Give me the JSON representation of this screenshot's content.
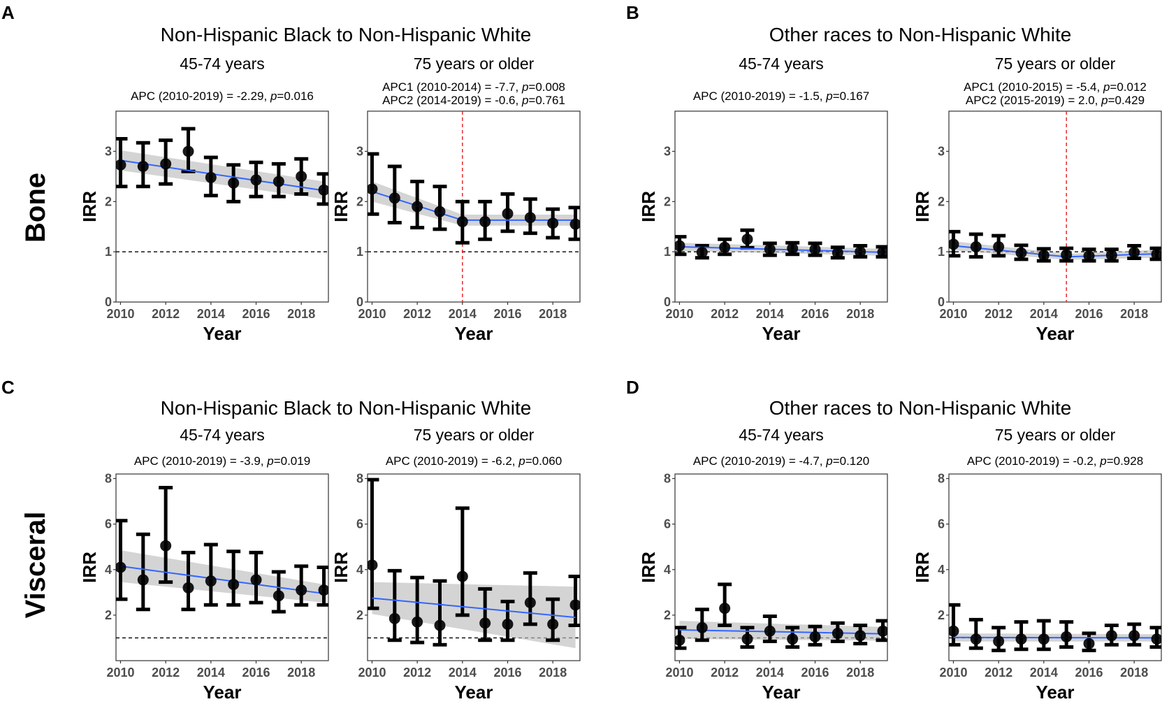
{
  "panels": [
    {
      "letter": "A",
      "title": "Non-Hispanic Black to Non-Hispanic White"
    },
    {
      "letter": "B",
      "title": "Other races to Non-Hispanic White"
    },
    {
      "letter": "C",
      "title": "Non-Hispanic Black to Non-Hispanic White"
    },
    {
      "letter": "D",
      "title": "Other races to Non-Hispanic White"
    }
  ],
  "rows": [
    {
      "label": "Bone"
    },
    {
      "label": "Visceral"
    }
  ],
  "colors": {
    "points": "#000000",
    "trend_line": "#3366ff",
    "confidence_band": "#bdbdbd",
    "joinpoint_line": "#e41a1c",
    "reference_line": "#000000"
  },
  "chart_data": [
    {
      "id": "A-45-74",
      "type": "scatter",
      "panel": "A",
      "row": "Bone",
      "title": "45-74 years",
      "annotation": [
        {
          "pre": "APC (2010-2019)  =  -2.29, ",
          "p": "p",
          "post": "=0.016"
        }
      ],
      "xlabel": "Year",
      "ylabel": "IRR",
      "xlim": [
        2009.8,
        2019.2
      ],
      "ylim": [
        0,
        3.8
      ],
      "xticks": [
        2010,
        2012,
        2014,
        2016,
        2018
      ],
      "yticks": [
        0,
        1,
        2,
        3
      ],
      "reference_y": 1,
      "joinpoint": null,
      "x": [
        2010,
        2011,
        2012,
        2013,
        2014,
        2015,
        2016,
        2017,
        2018,
        2019
      ],
      "values": [
        2.73,
        2.7,
        2.75,
        3.0,
        2.48,
        2.37,
        2.43,
        2.4,
        2.5,
        2.23
      ],
      "ci_lower": [
        2.3,
        2.3,
        2.35,
        2.6,
        2.12,
        2.0,
        2.1,
        2.1,
        2.15,
        1.95
      ],
      "ci_upper": [
        3.25,
        3.17,
        3.22,
        3.45,
        2.88,
        2.73,
        2.78,
        2.75,
        2.85,
        2.55
      ],
      "fit_x": [
        2010,
        2019
      ],
      "fit_y": [
        2.82,
        2.22
      ],
      "band_lower": [
        2.62,
        2.05
      ],
      "band_upper": [
        3.02,
        2.4
      ]
    },
    {
      "id": "A-75",
      "type": "scatter",
      "panel": "A",
      "row": "Bone",
      "title": "75 years or older",
      "annotation": [
        {
          "pre": "APC1 (2010-2014)  =  -7.7, ",
          "p": "p",
          "post": "=0.008"
        },
        {
          "pre": "APC2 (2014-2019)  =  -0.6, ",
          "p": "p",
          "post": "=0.761"
        }
      ],
      "xlabel": "Year",
      "ylabel": "IRR",
      "xlim": [
        2009.8,
        2019.2
      ],
      "ylim": [
        0,
        3.8
      ],
      "xticks": [
        2010,
        2012,
        2014,
        2016,
        2018
      ],
      "yticks": [
        0,
        1,
        2,
        3
      ],
      "reference_y": 1,
      "joinpoint": 2014,
      "x": [
        2010,
        2011,
        2012,
        2013,
        2014,
        2015,
        2016,
        2017,
        2018,
        2019
      ],
      "values": [
        2.25,
        2.07,
        1.9,
        1.8,
        1.6,
        1.6,
        1.76,
        1.68,
        1.57,
        1.55
      ],
      "ci_lower": [
        1.75,
        1.58,
        1.48,
        1.45,
        1.18,
        1.25,
        1.41,
        1.37,
        1.28,
        1.25
      ],
      "ci_upper": [
        2.95,
        2.7,
        2.4,
        2.3,
        2.0,
        2.0,
        2.15,
        2.05,
        1.85,
        1.88
      ],
      "fit_x": [
        2010,
        2014,
        2019
      ],
      "fit_y": [
        2.2,
        1.63,
        1.63
      ],
      "band_lower": [
        2.0,
        1.52,
        1.52
      ],
      "band_upper": [
        2.4,
        1.74,
        1.74
      ]
    },
    {
      "id": "B-45-74",
      "type": "scatter",
      "panel": "B",
      "row": "Bone",
      "title": "45-74 years",
      "annotation": [
        {
          "pre": "APC (2010-2019)  =  -1.5, ",
          "p": "p",
          "post": "=0.167"
        }
      ],
      "xlabel": "Year",
      "ylabel": "IRR",
      "xlim": [
        2009.8,
        2019.2
      ],
      "ylim": [
        0,
        3.8
      ],
      "xticks": [
        2010,
        2012,
        2014,
        2016,
        2018
      ],
      "yticks": [
        0,
        1,
        2,
        3
      ],
      "reference_y": 1,
      "joinpoint": null,
      "x": [
        2010,
        2011,
        2012,
        2013,
        2014,
        2015,
        2016,
        2017,
        2018,
        2019
      ],
      "values": [
        1.12,
        0.99,
        1.09,
        1.25,
        1.05,
        1.07,
        1.05,
        0.98,
        1.0,
        0.99
      ],
      "ci_lower": [
        0.95,
        0.88,
        0.95,
        1.08,
        0.93,
        0.95,
        0.93,
        0.88,
        0.9,
        0.9
      ],
      "ci_upper": [
        1.3,
        1.12,
        1.25,
        1.43,
        1.17,
        1.18,
        1.17,
        1.09,
        1.12,
        1.1
      ],
      "fit_x": [
        2010,
        2019
      ],
      "fit_y": [
        1.1,
        0.99
      ],
      "band_lower": [
        1.02,
        0.92
      ],
      "band_upper": [
        1.18,
        1.06
      ]
    },
    {
      "id": "B-75",
      "type": "scatter",
      "panel": "B",
      "row": "Bone",
      "title": "75 years or older",
      "annotation": [
        {
          "pre": "APC1 (2010-2015)  =  -5.4, ",
          "p": "p",
          "post": "=0.012"
        },
        {
          "pre": "APC2 (2015-2019)  =  2.0, ",
          "p": "p",
          "post": "=0.429"
        }
      ],
      "xlabel": "Year",
      "ylabel": "IRR",
      "xlim": [
        2009.8,
        2019.2
      ],
      "ylim": [
        0,
        3.8
      ],
      "xticks": [
        2010,
        2012,
        2014,
        2016,
        2018
      ],
      "yticks": [
        0,
        1,
        2,
        3
      ],
      "reference_y": 1,
      "joinpoint": 2015,
      "x": [
        2010,
        2011,
        2012,
        2013,
        2014,
        2015,
        2016,
        2017,
        2018,
        2019
      ],
      "values": [
        1.15,
        1.1,
        1.1,
        0.98,
        0.93,
        0.94,
        0.92,
        0.93,
        0.99,
        0.95
      ],
      "ci_lower": [
        0.92,
        0.9,
        0.92,
        0.85,
        0.82,
        0.82,
        0.82,
        0.82,
        0.87,
        0.85
      ],
      "ci_upper": [
        1.4,
        1.35,
        1.32,
        1.13,
        1.06,
        1.07,
        1.05,
        1.05,
        1.12,
        1.07
      ],
      "fit_x": [
        2010,
        2015,
        2019
      ],
      "fit_y": [
        1.12,
        0.9,
        0.96
      ],
      "band_lower": [
        1.03,
        0.84,
        0.88
      ],
      "band_upper": [
        1.21,
        0.96,
        1.04
      ]
    },
    {
      "id": "C-45-74",
      "type": "scatter",
      "panel": "C",
      "row": "Visceral",
      "title": "45-74 years",
      "annotation": [
        {
          "pre": "APC (2010-2019)  =  -3.9, ",
          "p": "p",
          "post": "=0.019"
        }
      ],
      "xlabel": "Year",
      "ylabel": "IRR",
      "xlim": [
        2009.8,
        2019.2
      ],
      "ylim": [
        0,
        8.2
      ],
      "xticks": [
        2010,
        2012,
        2014,
        2016,
        2018
      ],
      "yticks": [
        2,
        4,
        6,
        8
      ],
      "reference_y": 1,
      "joinpoint": null,
      "x": [
        2010,
        2011,
        2012,
        2013,
        2014,
        2015,
        2016,
        2017,
        2018,
        2019
      ],
      "values": [
        4.1,
        3.55,
        5.05,
        3.2,
        3.5,
        3.35,
        3.55,
        2.85,
        3.1,
        3.1
      ],
      "ci_lower": [
        2.7,
        2.25,
        3.45,
        2.25,
        2.45,
        2.45,
        2.55,
        2.15,
        2.45,
        2.45
      ],
      "ci_upper": [
        6.15,
        5.55,
        7.6,
        4.75,
        5.1,
        4.8,
        4.75,
        3.9,
        4.15,
        4.1
      ],
      "fit_x": [
        2010,
        2019
      ],
      "fit_y": [
        4.15,
        2.95
      ],
      "band_lower": [
        3.45,
        2.55
      ],
      "band_upper": [
        4.85,
        3.35
      ]
    },
    {
      "id": "C-75",
      "type": "scatter",
      "panel": "C",
      "row": "Visceral",
      "title": "75 years or older",
      "annotation": [
        {
          "pre": "APC (2010-2019)  =  -6.2, ",
          "p": "p",
          "post": "=0.060"
        }
      ],
      "xlabel": "Year",
      "ylabel": "IRR",
      "xlim": [
        2009.8,
        2019.2
      ],
      "ylim": [
        0,
        8.2
      ],
      "xticks": [
        2010,
        2012,
        2014,
        2016,
        2018
      ],
      "yticks": [
        2,
        4,
        6,
        8
      ],
      "reference_y": 1,
      "joinpoint": null,
      "x": [
        2010,
        2011,
        2012,
        2013,
        2014,
        2015,
        2016,
        2017,
        2018,
        2019
      ],
      "values": [
        4.2,
        1.85,
        1.7,
        1.55,
        3.7,
        1.65,
        1.6,
        2.55,
        1.6,
        2.45
      ],
      "ci_lower": [
        2.3,
        0.9,
        0.8,
        0.7,
        2.0,
        0.9,
        0.9,
        1.6,
        0.9,
        1.55
      ],
      "ci_upper": [
        7.95,
        3.95,
        3.65,
        3.5,
        6.7,
        3.15,
        2.6,
        3.85,
        2.7,
        3.7
      ],
      "fit_x": [
        2010,
        2019
      ],
      "fit_y": [
        2.75,
        1.9
      ],
      "band_lower": [
        2.05,
        0.55
      ],
      "band_upper": [
        3.45,
        3.25
      ]
    },
    {
      "id": "D-45-74",
      "type": "scatter",
      "panel": "D",
      "row": "Visceral",
      "title": "45-74 years",
      "annotation": [
        {
          "pre": "APC (2010-2019)  =  -4.7, ",
          "p": "p",
          "post": "=0.120"
        }
      ],
      "xlabel": "Year",
      "ylabel": "IRR",
      "xlim": [
        2009.8,
        2019.2
      ],
      "ylim": [
        0,
        8.2
      ],
      "xticks": [
        2010,
        2012,
        2014,
        2016,
        2018
      ],
      "yticks": [
        2,
        4,
        6,
        8
      ],
      "reference_y": 1,
      "joinpoint": null,
      "x": [
        2010,
        2011,
        2012,
        2013,
        2014,
        2015,
        2016,
        2017,
        2018,
        2019
      ],
      "values": [
        0.9,
        1.45,
        2.3,
        0.95,
        1.3,
        0.95,
        1.05,
        1.2,
        1.1,
        1.3
      ],
      "ci_lower": [
        0.55,
        0.9,
        1.55,
        0.6,
        0.85,
        0.6,
        0.7,
        0.85,
        0.75,
        0.9
      ],
      "ci_upper": [
        1.45,
        2.25,
        3.35,
        1.45,
        1.95,
        1.45,
        1.5,
        1.65,
        1.55,
        1.75
      ],
      "fit_x": [
        2010,
        2019
      ],
      "fit_y": [
        1.35,
        1.18
      ],
      "band_lower": [
        0.95,
        0.88
      ],
      "band_upper": [
        1.75,
        1.48
      ]
    },
    {
      "id": "D-75",
      "type": "scatter",
      "panel": "D",
      "row": "Visceral",
      "title": "75 years or older",
      "annotation": [
        {
          "pre": "APC (2010-2019)  =  -0.2, ",
          "p": "p",
          "post": "=0.928"
        }
      ],
      "xlabel": "Year",
      "ylabel": "IRR",
      "xlim": [
        2009.8,
        2019.2
      ],
      "ylim": [
        0,
        8.2
      ],
      "xticks": [
        2010,
        2012,
        2014,
        2016,
        2018
      ],
      "yticks": [
        2,
        4,
        6,
        8
      ],
      "reference_y": 1,
      "joinpoint": null,
      "x": [
        2010,
        2011,
        2012,
        2013,
        2014,
        2015,
        2016,
        2017,
        2018,
        2019
      ],
      "values": [
        1.3,
        0.95,
        0.85,
        0.95,
        0.95,
        1.05,
        0.75,
        1.1,
        1.1,
        0.95
      ],
      "ci_lower": [
        0.7,
        0.55,
        0.45,
        0.5,
        0.5,
        0.6,
        0.45,
        0.7,
        0.7,
        0.6
      ],
      "ci_upper": [
        2.45,
        1.8,
        1.45,
        1.7,
        1.75,
        1.7,
        1.2,
        1.55,
        1.6,
        1.45
      ],
      "fit_x": [
        2010,
        2019
      ],
      "fit_y": [
        1.02,
        1.0
      ],
      "band_lower": [
        0.84,
        0.84
      ],
      "band_upper": [
        1.2,
        1.16
      ]
    }
  ]
}
